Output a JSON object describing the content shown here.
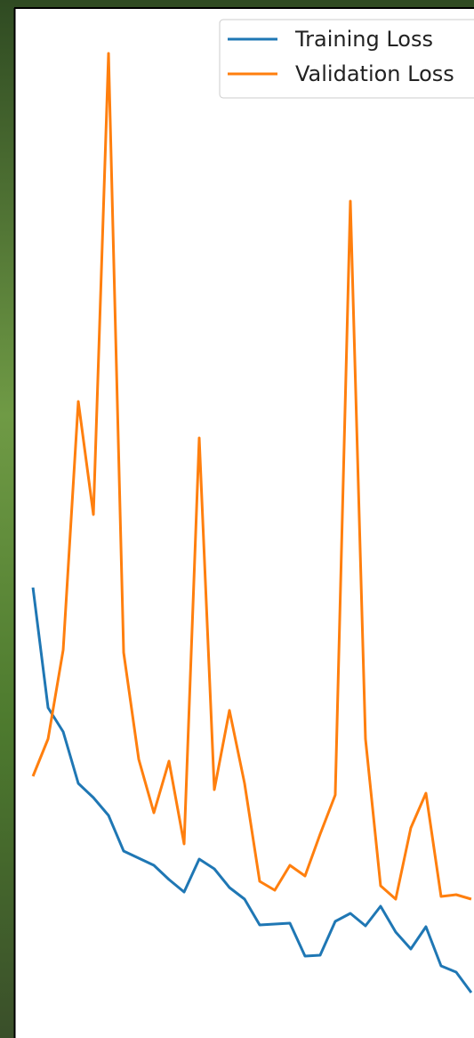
{
  "chart_data": {
    "type": "line",
    "x": [
      0,
      1,
      2,
      3,
      4,
      5,
      6,
      7,
      8,
      9,
      10,
      11,
      12,
      13,
      14,
      15,
      16,
      17,
      18,
      19,
      20,
      21,
      22,
      23,
      24,
      25,
      26,
      27,
      28,
      29
    ],
    "xlim": [
      -1.18,
      29.18
    ],
    "ylim": [
      0,
      1166
    ],
    "legend": "upper right",
    "series": [
      {
        "name": "Training Loss",
        "color": "#1f77b4",
        "values": [
          506,
          371,
          344,
          286,
          270,
          250,
          210,
          202,
          194,
          178,
          164,
          201,
          190,
          169,
          156,
          127,
          128,
          129,
          92,
          93,
          131,
          140,
          126,
          148,
          119,
          100,
          125,
          81,
          74,
          51
        ]
      },
      {
        "name": "Validation Loss",
        "color": "#ff7f0e",
        "values": [
          294,
          336,
          436,
          715,
          588,
          1106,
          433,
          313,
          253,
          311,
          218,
          674,
          279,
          368,
          286,
          176,
          166,
          194,
          182,
          229,
          273,
          940,
          336,
          171,
          156,
          236,
          275,
          159,
          161,
          156
        ]
      }
    ]
  }
}
